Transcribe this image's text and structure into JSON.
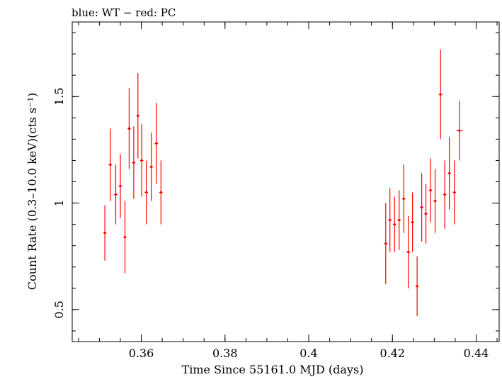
{
  "chart_data": {
    "type": "scatter",
    "title": "blue: WT − red: PC",
    "xlabel": "Time Since 55161.0 MJD (days)",
    "ylabel": "Count Rate (0.3–10.0 keV)(cts s⁻¹)",
    "xlim": [
      0.3435,
      0.4455
    ],
    "ylim": [
      0.35,
      1.85
    ],
    "x_ticks": [
      0.36,
      0.38,
      0.4,
      0.42,
      0.44
    ],
    "x_tick_labels": [
      "0.36",
      "0.38",
      "0.4",
      "0.42",
      "0.44"
    ],
    "y_ticks": [
      0.5,
      1.0,
      1.5
    ],
    "y_tick_labels": [
      "0.5",
      "1",
      "1.5"
    ],
    "grid": false,
    "series": [
      {
        "color": "#ff0000",
        "points": [
          {
            "x": 0.3513,
            "xerr": 0.0004,
            "y": 0.86,
            "yerr": 0.13
          },
          {
            "x": 0.3526,
            "xerr": 0.0004,
            "y": 1.18,
            "yerr": 0.17
          },
          {
            "x": 0.3539,
            "xerr": 0.0004,
            "y": 1.04,
            "yerr": 0.14
          },
          {
            "x": 0.355,
            "xerr": 0.0004,
            "y": 1.08,
            "yerr": 0.15
          },
          {
            "x": 0.3561,
            "xerr": 0.0004,
            "y": 0.84,
            "yerr": 0.17
          },
          {
            "x": 0.3571,
            "xerr": 0.0004,
            "y": 1.35,
            "yerr": 0.19
          },
          {
            "x": 0.3582,
            "xerr": 0.0004,
            "y": 1.19,
            "yerr": 0.17
          },
          {
            "x": 0.3592,
            "xerr": 0.0004,
            "y": 1.41,
            "yerr": 0.2
          },
          {
            "x": 0.3601,
            "xerr": 0.0004,
            "y": 1.2,
            "yerr": 0.17
          },
          {
            "x": 0.3612,
            "xerr": 0.0004,
            "y": 1.05,
            "yerr": 0.15
          },
          {
            "x": 0.3624,
            "xerr": 0.0004,
            "y": 1.17,
            "yerr": 0.16
          },
          {
            "x": 0.3636,
            "xerr": 0.0004,
            "y": 1.28,
            "yerr": 0.19
          },
          {
            "x": 0.3647,
            "xerr": 0.0004,
            "y": 1.05,
            "yerr": 0.15
          },
          {
            "x": 0.4184,
            "xerr": 0.0004,
            "y": 0.81,
            "yerr": 0.19
          },
          {
            "x": 0.4194,
            "xerr": 0.0004,
            "y": 0.92,
            "yerr": 0.15
          },
          {
            "x": 0.4205,
            "xerr": 0.0004,
            "y": 0.9,
            "yerr": 0.13
          },
          {
            "x": 0.4216,
            "xerr": 0.0004,
            "y": 0.92,
            "yerr": 0.14
          },
          {
            "x": 0.4227,
            "xerr": 0.0004,
            "y": 1.02,
            "yerr": 0.16
          },
          {
            "x": 0.4238,
            "xerr": 0.0004,
            "y": 0.77,
            "yerr": 0.17
          },
          {
            "x": 0.4248,
            "xerr": 0.0004,
            "y": 0.91,
            "yerr": 0.14
          },
          {
            "x": 0.4259,
            "xerr": 0.0004,
            "y": 0.61,
            "yerr": 0.14
          },
          {
            "x": 0.427,
            "xerr": 0.0004,
            "y": 0.98,
            "yerr": 0.16
          },
          {
            "x": 0.428,
            "xerr": 0.0004,
            "y": 0.95,
            "yerr": 0.14
          },
          {
            "x": 0.4291,
            "xerr": 0.0004,
            "y": 1.06,
            "yerr": 0.15
          },
          {
            "x": 0.4302,
            "xerr": 0.0004,
            "y": 1.01,
            "yerr": 0.15
          },
          {
            "x": 0.4315,
            "xerr": 0.0004,
            "y": 1.51,
            "yerr": 0.21
          },
          {
            "x": 0.4325,
            "xerr": 0.0004,
            "y": 1.04,
            "yerr": 0.16
          },
          {
            "x": 0.4336,
            "xerr": 0.0004,
            "y": 1.14,
            "yerr": 0.17
          },
          {
            "x": 0.4348,
            "xerr": 0.0004,
            "y": 1.05,
            "yerr": 0.15
          },
          {
            "x": 0.436,
            "xerr": 0.0007,
            "y": 1.34,
            "yerr": 0.14
          }
        ]
      }
    ]
  }
}
